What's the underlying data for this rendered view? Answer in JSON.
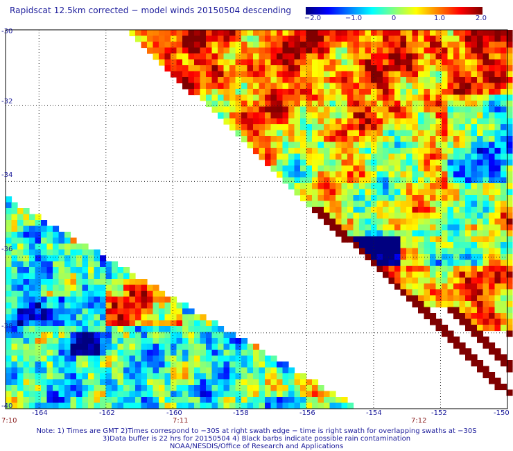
{
  "title": "Rapidscat 12.5km corrected − model winds 20150504 descending",
  "colorbar": {
    "ticks": [
      "−2.0",
      "−1.0",
      "0",
      "1.0",
      "2.0"
    ],
    "tick_values": [
      -2.0,
      -1.0,
      0,
      1.0,
      2.0
    ],
    "range": [
      -2.0,
      2.0
    ],
    "colors": [
      "#000080",
      "#0000ff",
      "#0080ff",
      "#00ffff",
      "#80ff80",
      "#ffff00",
      "#ff8000",
      "#ff0000",
      "#800000"
    ]
  },
  "axes": {
    "lat_labels": [
      "-30",
      "-32",
      "-34",
      "-36",
      "-38",
      "-40"
    ],
    "lat_values": [
      -30,
      -32,
      -34,
      -36,
      -38,
      -40
    ],
    "lon_labels": [
      "-164",
      "-162",
      "-160",
      "-158",
      "-156",
      "-154",
      "-152",
      "-150"
    ],
    "lon_values": [
      -164,
      -162,
      -160,
      -158,
      -156,
      -154,
      -152,
      -150
    ],
    "lon_range": [
      -165,
      -150
    ],
    "lat_range": [
      -40,
      -30
    ]
  },
  "times": [
    "7:10",
    "7:11",
    "7:12"
  ],
  "notes": [
    "Note: 1) Times are GMT 2)Times correspond to −30S at right swath edge − time is right swath for overlapping swaths at −30S",
    "3)Data buffer is 22 hrs for 20150504 4) Black barbs indicate possible rain contamination",
    "NOAA/NESDIS/Office of Research and Applications"
  ]
}
